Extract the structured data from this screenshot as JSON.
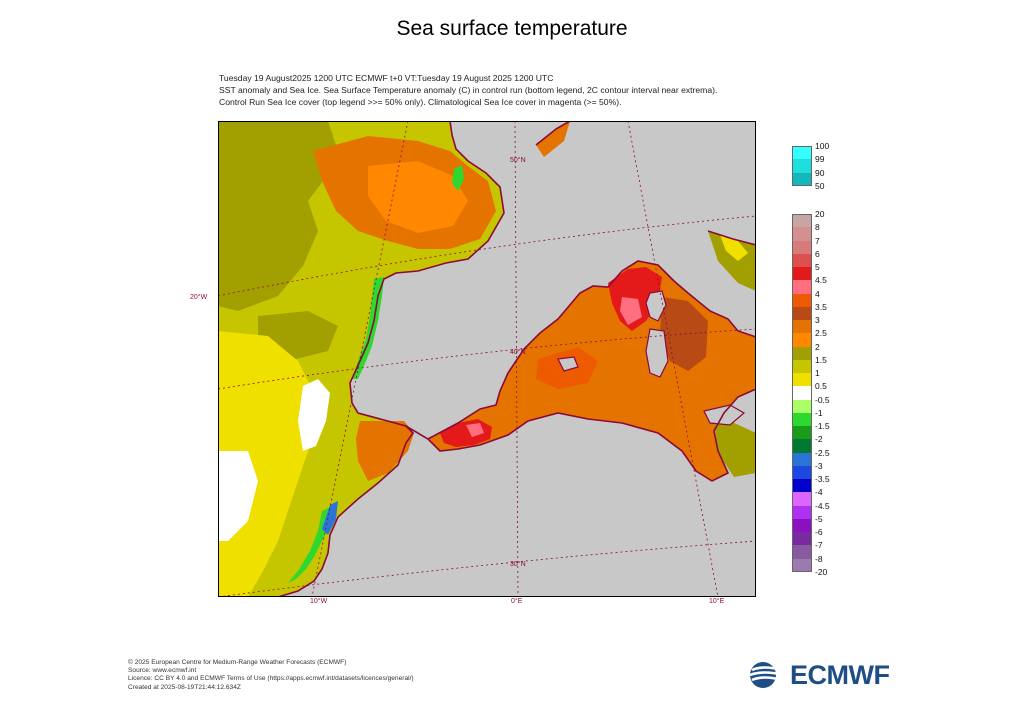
{
  "title": "Sea surface temperature",
  "subtitle": {
    "line1": "Tuesday 19 August2025 1200 UTC  ECMWF  t+0  VT:Tuesday 19 August 2025 1200 UTC",
    "line2": "SST anomaly and Sea Ice. Sea Surface Temperature anomaly (C) in control run (bottom legend, 2C contour interval near extrema).",
    "line3": "Control Run Sea Ice cover (top legend >>= 50% only). Climatological Sea Ice cover in magenta (>= 50%)."
  },
  "map": {
    "lat_labels": [
      "50°N",
      "40°N",
      "30°N"
    ],
    "lon_labels": [
      "10°W",
      "0°E",
      "10°E"
    ],
    "side_label": "20°W",
    "colors": {
      "land": "#c8c8c8",
      "coast": "#8b0a3a",
      "grid": "#8b0a3a"
    }
  },
  "ice_legend": {
    "labels": [
      "100",
      "99",
      "90",
      "50"
    ],
    "colors": [
      "#33ffff",
      "#1fdede",
      "#14b8b8",
      "#0e9494"
    ]
  },
  "sst_legend": {
    "labels": [
      "20",
      "8",
      "7",
      "6",
      "5",
      "4.5",
      "4",
      "3.5",
      "3",
      "2.5",
      "2",
      "1.5",
      "1",
      "0.5",
      "-0.5",
      "-1",
      "-1.5",
      "-2",
      "-2.5",
      "-3",
      "-3.5",
      "-4",
      "-4.5",
      "-5",
      "-6",
      "-7",
      "-8",
      "-20"
    ],
    "colors": [
      "#c8a5a5",
      "#d49090",
      "#d87a7a",
      "#dd5050",
      "#e41a1a",
      "#ff6f7f",
      "#ee5a00",
      "#b84a16",
      "#e57300",
      "#ff8800",
      "#a2a000",
      "#c6c600",
      "#f0e000",
      "#ffffff",
      "#aaff66",
      "#2ed82e",
      "#1a9c1a",
      "#007a33",
      "#2a74d8",
      "#1a48e0",
      "#0000cc",
      "#dd66ff",
      "#b030f0",
      "#8a10c0",
      "#7a2aa0",
      "#8a5aa0",
      "#9a7ab0",
      "#a898b8"
    ]
  },
  "footer": {
    "line1": "© 2025 European Centre for Medium-Range Weather Forecasts (ECMWF)",
    "line2": "Source: www.ecmwf.int",
    "line3": "Licence: CC BY 4.0 and ECMWF Terms of Use (https://apps.ecmwf.int/datasets/licences/general/)",
    "line4": "Created at 2025-08-19T21:44:12.634Z"
  },
  "logo": {
    "text": "ECMWF",
    "color": "#1f4e86"
  }
}
